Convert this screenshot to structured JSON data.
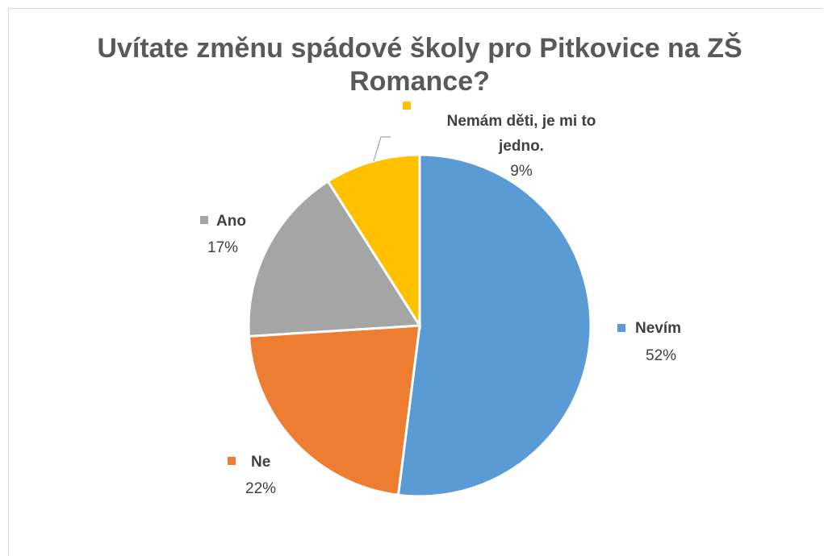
{
  "chart_data": {
    "type": "pie",
    "title": "Uvítate změnu spádové školy pro Pitkovice na ZŠ Romance?",
    "title_lines": [
      "Uvítate změnu spádové školy pro Pitkovice na ZŠ",
      "Romance?"
    ],
    "slices": [
      {
        "name": "Nevím",
        "value": 52,
        "label": "52%",
        "color": "#5B9BD5"
      },
      {
        "name": "Ne",
        "value": 22,
        "label": "22%",
        "color": "#ED7D31"
      },
      {
        "name": "Ano",
        "value": 17,
        "label": "17%",
        "color": "#A5A5A5"
      },
      {
        "name": "Nemám děti, je mi to jedno.",
        "name_lines": [
          "Nemám děti, je mi to",
          "jedno."
        ],
        "value": 9,
        "label": "9%",
        "color": "#FFC000"
      }
    ],
    "start_angle": "12 o'clock",
    "direction": "clockwise",
    "data_labels": "outside with legend key"
  }
}
